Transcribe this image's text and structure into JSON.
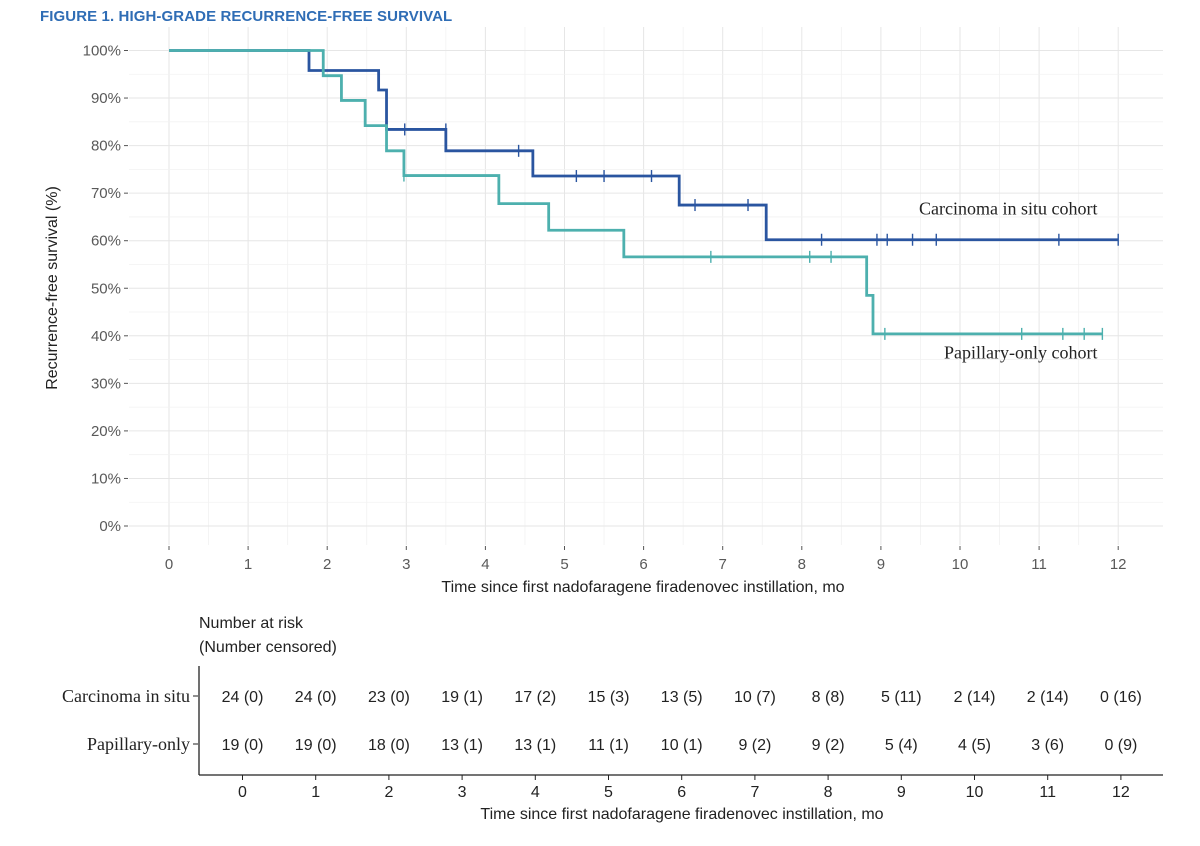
{
  "figure": {
    "title": "FIGURE 1. HIGH-GRADE RECURRENCE-FREE SURVIVAL"
  },
  "chart_data": {
    "type": "line",
    "subtype": "kaplan-meier-step",
    "xlabel": "Time since first nadofaragene firadenovec instillation, mo",
    "ylabel": "Recurrence-free survival (%)",
    "xlim": [
      0,
      12
    ],
    "ylim": [
      0,
      100
    ],
    "x_ticks": [
      "0",
      "1",
      "2",
      "3",
      "4",
      "5",
      "6",
      "7",
      "8",
      "9",
      "10",
      "11",
      "12"
    ],
    "y_ticks": [
      "0%",
      "10%",
      "20%",
      "30%",
      "40%",
      "50%",
      "60%",
      "70%",
      "80%",
      "90%",
      "100%"
    ],
    "grid": true,
    "series": [
      {
        "name": "Carcinoma in situ cohort",
        "color": "#2a55a0",
        "steps": [
          [
            0,
            100
          ],
          [
            1.77,
            95.8
          ],
          [
            2.65,
            91.7
          ],
          [
            2.75,
            83.4
          ],
          [
            3.5,
            78.9
          ],
          [
            4.6,
            73.6
          ],
          [
            6.45,
            67.5
          ],
          [
            7.55,
            60.2
          ],
          [
            12.0,
            60.2
          ]
        ],
        "censored": [
          [
            2.98,
            83.4
          ],
          [
            3.5,
            83.4
          ],
          [
            4.42,
            78.9
          ],
          [
            5.15,
            73.6
          ],
          [
            5.5,
            73.6
          ],
          [
            6.1,
            73.6
          ],
          [
            6.65,
            67.5
          ],
          [
            7.32,
            67.5
          ],
          [
            8.25,
            60.2
          ],
          [
            8.95,
            60.2
          ],
          [
            9.08,
            60.2
          ],
          [
            9.4,
            60.2
          ],
          [
            9.7,
            60.2
          ],
          [
            11.25,
            60.2
          ],
          [
            12.0,
            60.2
          ]
        ]
      },
      {
        "name": "Papillary-only cohort",
        "color": "#4db0ae",
        "steps": [
          [
            0,
            100
          ],
          [
            1.95,
            94.7
          ],
          [
            2.18,
            89.5
          ],
          [
            2.48,
            84.2
          ],
          [
            2.75,
            78.9
          ],
          [
            2.97,
            73.7
          ],
          [
            4.17,
            67.8
          ],
          [
            4.8,
            62.2
          ],
          [
            5.75,
            56.6
          ],
          [
            8.82,
            48.5
          ],
          [
            8.9,
            40.4
          ],
          [
            11.8,
            40.4
          ]
        ],
        "censored": [
          [
            2.97,
            73.7
          ],
          [
            6.85,
            56.6
          ],
          [
            8.1,
            56.6
          ],
          [
            8.37,
            56.6
          ],
          [
            9.05,
            40.4
          ],
          [
            10.78,
            40.4
          ],
          [
            11.3,
            40.4
          ],
          [
            11.57,
            40.4
          ],
          [
            11.8,
            40.4
          ]
        ]
      }
    ],
    "annotations": [
      {
        "text": "Carcinoma in situ cohort",
        "x": 11.7,
        "y": 65.5
      },
      {
        "text": "Papillary-only cohort",
        "x": 11.7,
        "y": 35.2
      }
    ]
  },
  "risk_table": {
    "header_line1": "Number at risk",
    "header_line2": "(Number censored)",
    "xlabel": "Time since first nadofaragene firadenovec instillation, mo",
    "x_ticks": [
      "0",
      "1",
      "2",
      "3",
      "4",
      "5",
      "6",
      "7",
      "8",
      "9",
      "10",
      "11",
      "12"
    ],
    "rows": [
      {
        "label": "Carcinoma in situ",
        "cells": [
          "24 (0)",
          "24 (0)",
          "23 (0)",
          "19 (1)",
          "17 (2)",
          "15 (3)",
          "13 (5)",
          "10 (7)",
          "8 (8)",
          "5 (11)",
          "2 (14)",
          "2 (14)",
          "0 (16)"
        ]
      },
      {
        "label": "Papillary-only",
        "cells": [
          "19 (0)",
          "19 (0)",
          "18 (0)",
          "13 (1)",
          "13 (1)",
          "11 (1)",
          "10 (1)",
          "9 (2)",
          "9 (2)",
          "5 (4)",
          "4 (5)",
          "3 (6)",
          "0 (9)"
        ]
      }
    ]
  }
}
